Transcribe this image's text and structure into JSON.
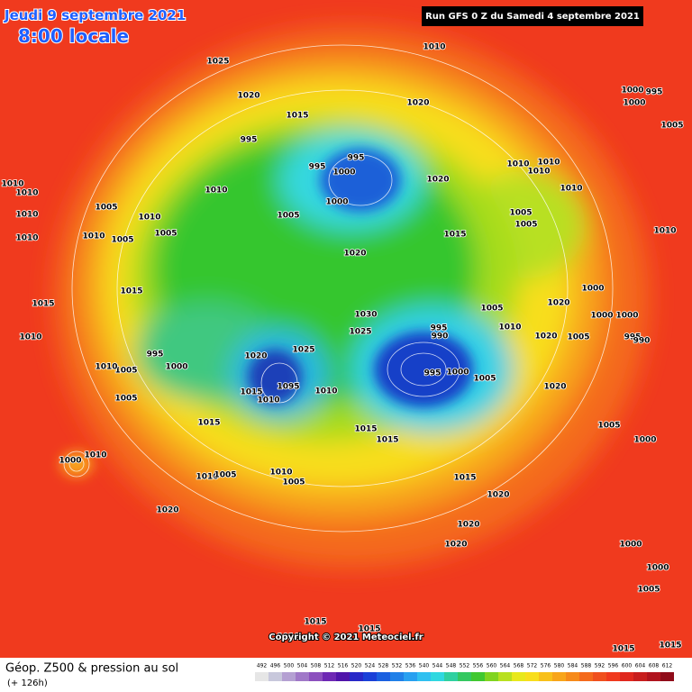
{
  "header": {
    "date": "Jeudi 9 septembre 2021",
    "time": "8:00 locale",
    "run": "Run GFS 0 Z du Samedi 4 septembre 2021"
  },
  "footer": {
    "copyright": "Copyright © 2021 Meteociel.fr",
    "title": "Géop. Z500 & pression au sol",
    "forecast": "(+ 126h)"
  },
  "isobar_labels": [
    "1010",
    "1025",
    "1020",
    "1020",
    "1015",
    "995",
    "1000",
    "995",
    "1000",
    "995",
    "1020",
    "995",
    "1005",
    "1000",
    "1005",
    "1010",
    "1010",
    "1010",
    "1010",
    "1005",
    "1005",
    "1010",
    "1010",
    "1010",
    "1010",
    "1005",
    "1010",
    "1005",
    "1010",
    "1005",
    "1010",
    "1005",
    "1000",
    "1020",
    "1015",
    "1010",
    "1015",
    "1015",
    "1010",
    "995",
    "1000",
    "1005",
    "1010",
    "1020",
    "1025",
    "1030",
    "1025",
    "1005",
    "1010",
    "1020",
    "1000",
    "1000",
    "1000",
    "995",
    "990",
    "1005",
    "1020",
    "995",
    "990",
    "995",
    "1000",
    "1005",
    "1020",
    "1015",
    "1010",
    "1095",
    "1010",
    "1015",
    "1015",
    "1015",
    "1005",
    "1000",
    "1000",
    "1010",
    "1010",
    "1005",
    "1010",
    "1005",
    "1015",
    "1020",
    "1020",
    "1020",
    "1000",
    "1020",
    "1000",
    "1005",
    "1015",
    "1015",
    "1010",
    "1015",
    "1015"
  ],
  "scale": {
    "labels": [
      492,
      496,
      500,
      504,
      508,
      512,
      516,
      520,
      524,
      528,
      532,
      536,
      540,
      544,
      548,
      552,
      556,
      560,
      564,
      568,
      572,
      576,
      580,
      584,
      588,
      592,
      596,
      600,
      604,
      608,
      612
    ],
    "colors": [
      "#e6e6e6",
      "#c8c8dc",
      "#b4a0d2",
      "#a078c8",
      "#8c50be",
      "#6e28b4",
      "#5014aa",
      "#2828c8",
      "#1a40d8",
      "#1a60e0",
      "#2080e8",
      "#28a0f0",
      "#30c0f0",
      "#30d8e0",
      "#30d0a0",
      "#34c860",
      "#40c830",
      "#80d420",
      "#b8e020",
      "#e8e81c",
      "#f8de1c",
      "#f8c01a",
      "#f8a51a",
      "#f68a1a",
      "#f46a1c",
      "#f0501e",
      "#f03a1e",
      "#e0281e",
      "#c81e1e",
      "#b0141e",
      "#900c1a"
    ]
  }
}
